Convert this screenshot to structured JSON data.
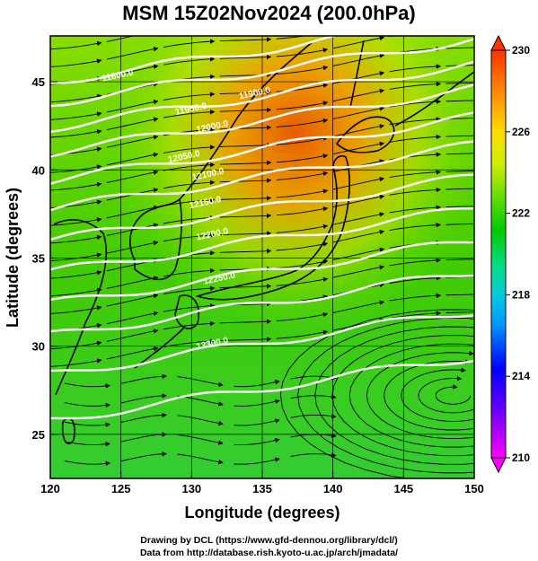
{
  "title": "MSM 15Z02Nov2024 (200.0hPa)",
  "x_axis": {
    "label": "Longitude (degrees)",
    "min": 120,
    "max": 150,
    "ticks": [
      120,
      125,
      130,
      135,
      140,
      145,
      150
    ]
  },
  "y_axis": {
    "label": "Latitude  (degrees)",
    "min": 22.5,
    "max": 47.6,
    "ticks": [
      25,
      30,
      35,
      40,
      45
    ]
  },
  "colorbar": {
    "min": 210,
    "max": 230,
    "tick_labels": [
      "230",
      "226",
      "222",
      "218",
      "214",
      "210"
    ],
    "colors": [
      "#ff00ff",
      "#0000ff",
      "#00aaff",
      "#00ffaa",
      "#00cc00",
      "#88dd00",
      "#ffdd00",
      "#ff8800",
      "#ff4400"
    ]
  },
  "contour_labels": [
    {
      "text": "11800.0",
      "lon": 124.8,
      "lat": 45.2
    },
    {
      "text": "11900.0",
      "lon": 134.5,
      "lat": 44.2
    },
    {
      "text": "11950.0",
      "lon": 130.0,
      "lat": 43.3
    },
    {
      "text": "12000.0",
      "lon": 131.5,
      "lat": 42.3
    },
    {
      "text": "12050.0",
      "lon": 129.5,
      "lat": 40.6
    },
    {
      "text": "12100.0",
      "lon": 131.2,
      "lat": 39.6
    },
    {
      "text": "12150.0",
      "lon": 131.0,
      "lat": 38.0
    },
    {
      "text": "12200.0",
      "lon": 131.5,
      "lat": 36.2
    },
    {
      "text": "12250.0",
      "lon": 132.0,
      "lat": 33.7
    },
    {
      "text": "12300.0",
      "lon": 131.5,
      "lat": 30.0
    }
  ],
  "credits": {
    "line1": "Drawing by DCL (https://www.gfd-dennou.org/library/dcl/)",
    "line2": "Data from http://database.rish.kyoto-u.ac.jp/arch/jmadata/"
  }
}
